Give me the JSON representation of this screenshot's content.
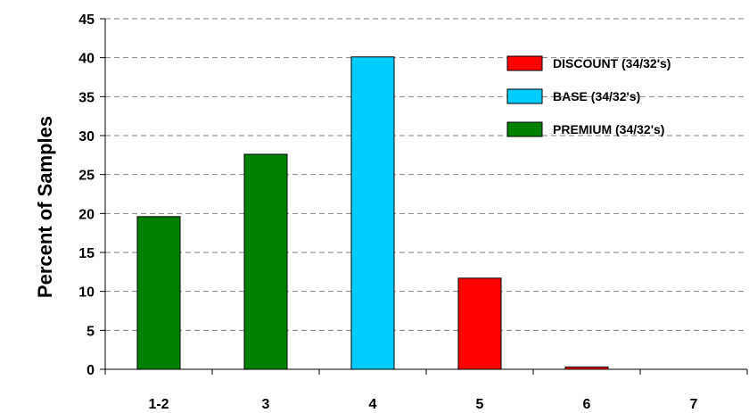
{
  "chart_data": {
    "type": "bar",
    "title": "",
    "xlabel": "",
    "ylabel": "Percent of Samples",
    "ylim": [
      0,
      45
    ],
    "yticks": [
      0,
      5,
      10,
      15,
      20,
      25,
      30,
      35,
      40,
      45
    ],
    "grid": "horizontal dashed",
    "legend_placement": "top-right",
    "categories": [
      "1-2",
      "3",
      "4",
      "5",
      "6",
      "7"
    ],
    "values": [
      19.6,
      27.6,
      40.1,
      11.7,
      0.3,
      0
    ],
    "bar_groups": [
      "PREMIUM (34/32's)",
      "PREMIUM (34/32's)",
      "BASE (34/32's)",
      "DISCOUNT (34/32's)",
      "DISCOUNT (34/32's)",
      "DISCOUNT (34/32's)"
    ],
    "legend": [
      {
        "name": "DISCOUNT (34/32's)",
        "color": "#ff0000"
      },
      {
        "name": "BASE (34/32's)",
        "color": "#00ccff"
      },
      {
        "name": "PREMIUM (34/32's)",
        "color": "#008000"
      }
    ]
  }
}
